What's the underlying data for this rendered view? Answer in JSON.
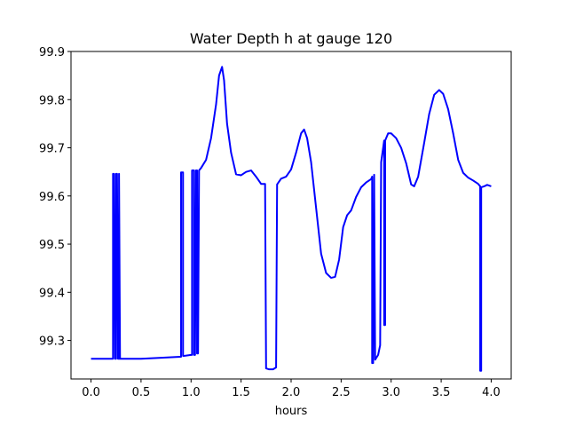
{
  "chart_data": {
    "type": "line",
    "title": "Water Depth h at gauge 120",
    "xlabel": "hours",
    "ylabel": "",
    "xlim": [
      -0.2,
      4.2
    ],
    "ylim": [
      99.22,
      99.9
    ],
    "xticks": [
      0.0,
      0.5,
      1.0,
      1.5,
      2.0,
      2.5,
      3.0,
      3.5,
      4.0
    ],
    "xtick_labels": [
      "0.0",
      "0.5",
      "1.0",
      "1.5",
      "2.0",
      "2.5",
      "3.0",
      "3.5",
      "4.0"
    ],
    "yticks": [
      99.3,
      99.4,
      99.5,
      99.6,
      99.7,
      99.8,
      99.9
    ],
    "ytick_labels": [
      "99.3",
      "99.4",
      "99.5",
      "99.6",
      "99.7",
      "99.8",
      "99.9"
    ],
    "grid": false,
    "series": [
      {
        "color": "#0000ff",
        "x": [
          0.0,
          0.21,
          0.22,
          0.22,
          0.23,
          0.24,
          0.25,
          0.25,
          0.26,
          0.27,
          0.28,
          0.28,
          0.29,
          0.5,
          0.7,
          0.89,
          0.9,
          0.9,
          0.91,
          0.92,
          0.92,
          0.93,
          1.0,
          1.01,
          1.01,
          1.02,
          1.03,
          1.03,
          1.04,
          1.05,
          1.06,
          1.06,
          1.07,
          1.08,
          1.08,
          1.1,
          1.15,
          1.2,
          1.25,
          1.28,
          1.31,
          1.33,
          1.36,
          1.4,
          1.45,
          1.5,
          1.55,
          1.6,
          1.65,
          1.7,
          1.74,
          1.75,
          1.78,
          1.82,
          1.85,
          1.86,
          1.9,
          1.95,
          2.0,
          2.05,
          2.1,
          2.13,
          2.16,
          2.2,
          2.25,
          2.3,
          2.35,
          2.4,
          2.44,
          2.48,
          2.52,
          2.56,
          2.6,
          2.65,
          2.7,
          2.75,
          2.8,
          2.81,
          2.81,
          2.82,
          2.83,
          2.83,
          2.84,
          2.87,
          2.89,
          2.9,
          2.92,
          2.93,
          2.93,
          2.94,
          2.94,
          2.97,
          3.0,
          3.05,
          3.1,
          3.15,
          3.2,
          3.23,
          3.27,
          3.33,
          3.38,
          3.43,
          3.48,
          3.52,
          3.57,
          3.62,
          3.67,
          3.72,
          3.77,
          3.82,
          3.87,
          3.89,
          3.89,
          3.9,
          3.9,
          3.93,
          3.96,
          4.0
        ],
        "y": [
          99.262,
          99.262,
          99.262,
          99.646,
          99.646,
          99.262,
          99.262,
          99.646,
          99.646,
          99.262,
          99.262,
          99.646,
          99.262,
          99.262,
          99.264,
          99.266,
          99.266,
          99.649,
          99.649,
          99.649,
          99.268,
          99.268,
          99.27,
          99.27,
          99.653,
          99.653,
          99.653,
          99.27,
          99.27,
          99.653,
          99.653,
          99.273,
          99.273,
          99.653,
          99.653,
          99.658,
          99.675,
          99.72,
          99.79,
          99.85,
          99.868,
          99.84,
          99.75,
          99.69,
          99.645,
          99.643,
          99.65,
          99.653,
          99.64,
          99.625,
          99.625,
          99.242,
          99.24,
          99.24,
          99.244,
          99.624,
          99.636,
          99.64,
          99.655,
          99.69,
          99.73,
          99.738,
          99.72,
          99.67,
          99.575,
          99.48,
          99.44,
          99.43,
          99.432,
          99.468,
          99.535,
          99.56,
          99.57,
          99.598,
          99.618,
          99.628,
          99.635,
          99.64,
          99.253,
          99.253,
          99.644,
          99.644,
          99.26,
          99.27,
          99.29,
          99.67,
          99.7,
          99.715,
          99.332,
          99.332,
          99.715,
          99.73,
          99.73,
          99.72,
          99.7,
          99.668,
          99.624,
          99.62,
          99.64,
          99.71,
          99.77,
          99.81,
          99.82,
          99.812,
          99.78,
          99.73,
          99.675,
          99.648,
          99.638,
          99.632,
          99.625,
          99.62,
          99.237,
          99.237,
          99.618,
          99.62,
          99.623,
          99.62
        ]
      }
    ]
  }
}
